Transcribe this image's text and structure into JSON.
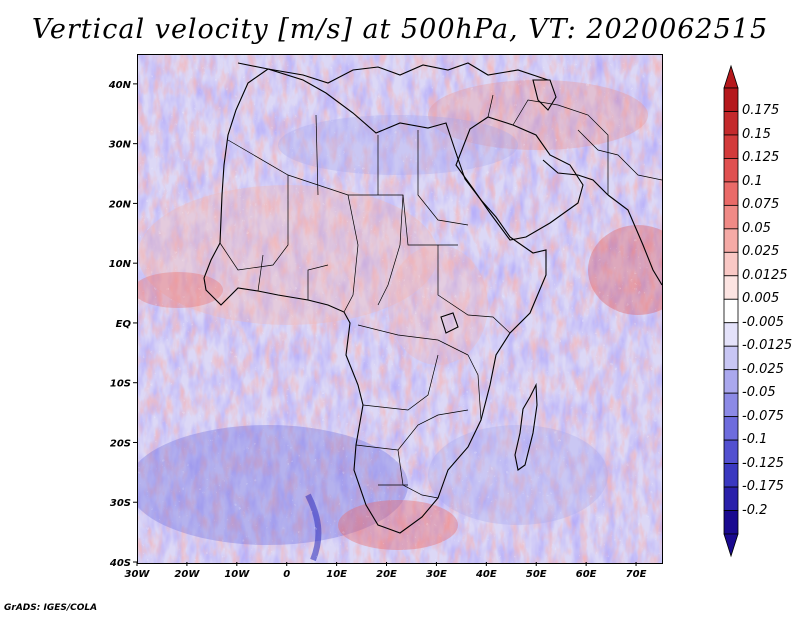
{
  "title": "Vertical velocity [m/s] at 500hPa, VT: 2020062515",
  "credit": "GrADS: IGES/COLA",
  "map": {
    "lon_range": [
      -30,
      75
    ],
    "lat_range": [
      -40,
      45
    ],
    "lat_ticks": [
      "40N",
      "30N",
      "20N",
      "10N",
      "EQ",
      "10S",
      "20S",
      "30S",
      "40S"
    ],
    "lon_ticks": [
      "30W",
      "20W",
      "10W",
      "0",
      "10E",
      "20E",
      "30E",
      "40E",
      "50E",
      "60E",
      "70E"
    ]
  },
  "colorbar": {
    "labels": [
      "0.175",
      "0.15",
      "0.125",
      "0.1",
      "0.075",
      "0.05",
      "0.025",
      "0.0125",
      "0.005",
      "-0.005",
      "-0.0125",
      "-0.025",
      "-0.05",
      "-0.075",
      "-0.1",
      "-0.125",
      "-0.175",
      "-0.2"
    ],
    "colors": [
      "#b5181c",
      "#c42a2c",
      "#d33b3b",
      "#e05050",
      "#ea6a68",
      "#f08a86",
      "#f5aaa6",
      "#f9c8c5",
      "#fce4e2",
      "#ffffff",
      "#e4e2fa",
      "#c8c6f4",
      "#aaa8ee",
      "#8c8ae6",
      "#6e6cdd",
      "#5250d0",
      "#3a38c0",
      "#2a20aa",
      "#1a0a90"
    ]
  }
}
